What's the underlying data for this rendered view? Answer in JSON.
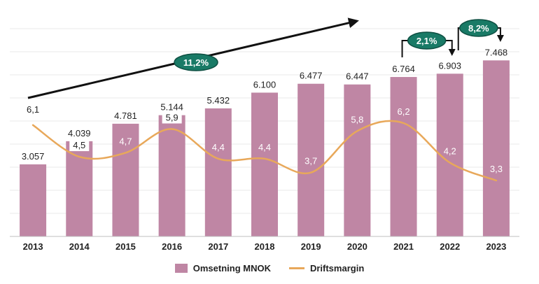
{
  "chart_data": {
    "type": "bar",
    "categories": [
      "2013",
      "2014",
      "2015",
      "2016",
      "2017",
      "2018",
      "2019",
      "2020",
      "2021",
      "2022",
      "2023"
    ],
    "series": [
      {
        "name": "Omsetning MNOK",
        "chart": "bar",
        "values": [
          3057,
          4039,
          4781,
          5144,
          5432,
          6100,
          6477,
          6447,
          6764,
          6903,
          7468
        ],
        "labels": [
          "3.057",
          "4.039",
          "4.781",
          "5.144",
          "5.432",
          "6.100",
          "6.477",
          "6.447",
          "6.764",
          "6.903",
          "7.468"
        ]
      },
      {
        "name": "Driftsmargin",
        "chart": "line",
        "values": [
          6.1,
          4.5,
          4.7,
          5.9,
          4.4,
          4.4,
          3.7,
          5.8,
          6.2,
          4.2,
          3.3
        ],
        "labels": [
          "6,1",
          "4,5",
          "4,7",
          "5,9",
          "4,4",
          "4,4",
          "3,7",
          "5,8",
          "6,2",
          "4,2",
          "3,3"
        ]
      }
    ],
    "annotations": [
      {
        "text": "11,2%",
        "kind": "trend-arrow"
      },
      {
        "text": "2,1%",
        "kind": "step",
        "from": "2021",
        "to": "2022"
      },
      {
        "text": "8,2%",
        "kind": "step",
        "from": "2022",
        "to": "2023"
      }
    ],
    "legend_position": "bottom",
    "grid": true,
    "colors": {
      "bar": "#bf86a4",
      "line": "#e8a85a",
      "badge": "#197a66",
      "text": "#222222",
      "grid": "#e9e9e9"
    }
  }
}
